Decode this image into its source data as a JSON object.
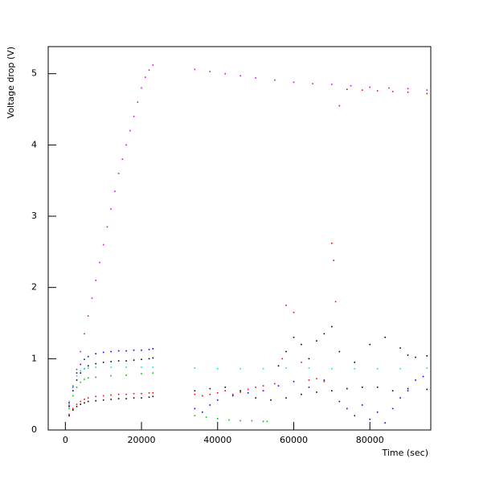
{
  "chart_data": {
    "type": "scatter",
    "xlabel": "Time (sec)",
    "ylabel": "Voltage drop (V)",
    "xlim": [
      -4500,
      96000
    ],
    "ylim": [
      0,
      5.38
    ],
    "xticks": [
      0,
      20000,
      40000,
      60000,
      80000
    ],
    "yticks": [
      0,
      1,
      2,
      3,
      4,
      5
    ],
    "series": [
      {
        "color": "#e000e0",
        "x": [
          1000,
          2000,
          3000,
          4000,
          5000,
          6000,
          7000,
          8000,
          9000,
          10000,
          11000,
          12000,
          13000,
          14000,
          15000,
          16000,
          17000,
          18000,
          19000,
          20000,
          21000,
          22000,
          23000,
          34000,
          38000,
          42000,
          46000,
          50000,
          55000,
          60000,
          65000,
          70000,
          75000,
          80000,
          85000,
          90000,
          95000
        ],
        "values": [
          0.35,
          0.6,
          0.85,
          1.1,
          1.35,
          1.6,
          1.85,
          2.1,
          2.35,
          2.6,
          2.85,
          3.1,
          3.35,
          3.6,
          3.8,
          4.0,
          4.2,
          4.4,
          4.6,
          4.8,
          4.95,
          5.05,
          5.12,
          5.06,
          5.03,
          5.0,
          4.97,
          4.94,
          4.91,
          4.88,
          4.86,
          4.85,
          4.83,
          4.81,
          4.8,
          4.79,
          4.77
        ]
      },
      {
        "color": "#ff0000",
        "x": [
          1000,
          2000,
          3000,
          4000,
          5000,
          6000,
          8000,
          10000,
          12000,
          14000,
          16000,
          18000,
          20000,
          22000,
          23000,
          34000,
          36000,
          38000,
          40000,
          42000,
          44000,
          46000,
          48000,
          50000,
          52000,
          55000,
          57000,
          58000,
          60000,
          62000,
          64000,
          66000,
          68000,
          70000,
          70500,
          71000,
          72000,
          74000,
          78000,
          82000,
          86000,
          90000,
          95000
        ],
        "values": [
          0.22,
          0.3,
          0.36,
          0.4,
          0.43,
          0.45,
          0.47,
          0.48,
          0.49,
          0.5,
          0.5,
          0.51,
          0.51,
          0.52,
          0.52,
          0.5,
          0.48,
          0.5,
          0.52,
          0.55,
          0.5,
          0.53,
          0.57,
          0.6,
          0.62,
          0.65,
          1.0,
          1.75,
          1.65,
          0.95,
          0.7,
          0.72,
          0.68,
          2.62,
          2.38,
          1.8,
          4.55,
          4.78,
          4.77,
          4.76,
          4.75,
          4.74,
          4.72
        ]
      },
      {
        "color": "#0000ff",
        "x": [
          1000,
          2000,
          3000,
          4000,
          5000,
          6000,
          8000,
          10000,
          12000,
          14000,
          16000,
          18000,
          20000,
          22000,
          23000,
          34000,
          36000,
          38000,
          40000,
          44000,
          48000,
          52000,
          56000,
          60000,
          64000,
          68000,
          72000,
          74000,
          76000,
          78000,
          80000,
          82000,
          84000,
          86000,
          88000,
          90000,
          92000,
          94000
        ],
        "values": [
          0.38,
          0.62,
          0.8,
          0.92,
          0.99,
          1.03,
          1.07,
          1.09,
          1.1,
          1.11,
          1.11,
          1.12,
          1.12,
          1.13,
          1.14,
          0.3,
          0.25,
          0.35,
          0.42,
          0.48,
          0.52,
          0.55,
          0.62,
          0.68,
          0.6,
          0.7,
          0.4,
          0.3,
          0.2,
          0.35,
          0.15,
          0.25,
          0.1,
          0.3,
          0.45,
          0.55,
          0.7,
          0.75
        ]
      },
      {
        "color": "#000000",
        "x": [
          1000,
          2000,
          3000,
          4000,
          5000,
          6000,
          8000,
          10000,
          12000,
          14000,
          16000,
          18000,
          20000,
          22000,
          23000,
          56000,
          58000,
          60000,
          62000,
          64000,
          66000,
          68000,
          70000,
          72000,
          76000,
          80000,
          84000,
          88000,
          90000,
          92000,
          95000
        ],
        "values": [
          0.33,
          0.55,
          0.7,
          0.8,
          0.86,
          0.9,
          0.93,
          0.95,
          0.96,
          0.97,
          0.97,
          0.98,
          0.99,
          1.0,
          1.01,
          0.9,
          1.1,
          1.3,
          1.2,
          1.0,
          1.25,
          1.35,
          1.45,
          1.1,
          0.95,
          1.2,
          1.3,
          1.15,
          1.05,
          1.02,
          1.04
        ]
      },
      {
        "color": "#000000",
        "x": [
          1000,
          2000,
          3000,
          4000,
          5000,
          6000,
          8000,
          10000,
          12000,
          14000,
          16000,
          18000,
          20000,
          22000,
          23000,
          34000,
          38000,
          42000,
          46000,
          50000,
          54000,
          58000,
          62000,
          66000,
          70000,
          74000,
          78000,
          82000,
          86000,
          90000,
          95000
        ],
        "values": [
          0.2,
          0.28,
          0.33,
          0.36,
          0.38,
          0.4,
          0.41,
          0.42,
          0.43,
          0.44,
          0.44,
          0.45,
          0.45,
          0.46,
          0.47,
          0.55,
          0.58,
          0.6,
          0.55,
          0.45,
          0.42,
          0.45,
          0.5,
          0.53,
          0.55,
          0.58,
          0.6,
          0.6,
          0.55,
          0.58,
          0.57
        ]
      },
      {
        "color": "#00e0e0",
        "x": [
          1000,
          2000,
          3000,
          4000,
          5000,
          6000,
          8000,
          12000,
          16000,
          20000,
          23000,
          34000,
          40000,
          46000,
          52000,
          58000,
          64000,
          70000,
          76000,
          82000,
          88000,
          95000
        ],
        "values": [
          0.4,
          0.62,
          0.76,
          0.83,
          0.86,
          0.87,
          0.88,
          0.88,
          0.88,
          0.88,
          0.88,
          0.87,
          0.86,
          0.86,
          0.86,
          0.87,
          0.87,
          0.86,
          0.86,
          0.86,
          0.86,
          0.87
        ]
      },
      {
        "color": "#00c000",
        "x": [
          1000,
          2000,
          3000,
          4000,
          5000,
          6000,
          8000,
          12000,
          16000,
          20000,
          23000,
          34000,
          37000,
          40000,
          43000,
          46000,
          49000,
          52000,
          53000
        ],
        "values": [
          0.3,
          0.48,
          0.6,
          0.67,
          0.71,
          0.73,
          0.74,
          0.76,
          0.77,
          0.79,
          0.8,
          0.2,
          0.18,
          0.16,
          0.14,
          0.13,
          0.13,
          0.12,
          0.12
        ]
      }
    ]
  }
}
